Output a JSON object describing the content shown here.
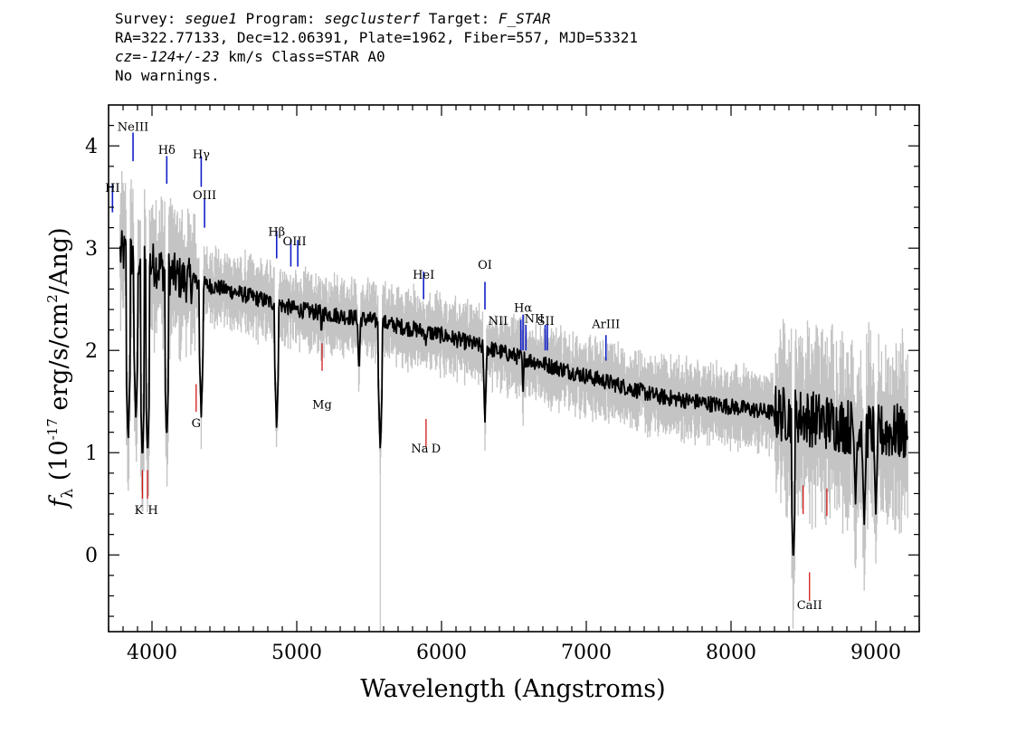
{
  "header": {
    "line1": {
      "survey_label": "Survey: ",
      "survey": "segue1",
      "program_label": " Program: ",
      "program": "segclusterf",
      "target_label": " Target: ",
      "target": "F_STAR"
    },
    "line2": "RA=322.77133, Dec=12.06391, Plate=1962, Fiber=557, MJD=53321",
    "line3": {
      "cz": "cz=-124+/-23",
      "rest": " km/s Class=STAR A0"
    },
    "line4": "No warnings."
  },
  "chart_data": {
    "type": "line",
    "xlabel": "Wavelength (Angstroms)",
    "ylabel_prefix": "f",
    "ylabel_subscript": "λ",
    "ylabel_rest": " (10",
    "ylabel_exp1": "-17",
    "ylabel_mid": " erg/s/cm",
    "ylabel_exp2": "2",
    "ylabel_end": "/Ang)",
    "xlim": [
      3700,
      9300
    ],
    "ylim": [
      -0.75,
      4.4
    ],
    "xticks": [
      4000,
      5000,
      6000,
      7000,
      8000,
      9000
    ],
    "yticks": [
      0,
      1,
      2,
      3,
      4
    ],
    "colors": {
      "flux": "#000000",
      "error_band": "#c4c4c4",
      "emission_lines": "#1020c8",
      "absorption_lines": "#d01818"
    },
    "continuum": [
      [
        3800,
        2.95
      ],
      [
        4000,
        2.85
      ],
      [
        4200,
        2.7
      ],
      [
        4500,
        2.6
      ],
      [
        5000,
        2.4
      ],
      [
        5500,
        2.3
      ],
      [
        6000,
        2.15
      ],
      [
        6500,
        1.95
      ],
      [
        7000,
        1.75
      ],
      [
        7500,
        1.55
      ],
      [
        8000,
        1.45
      ],
      [
        8500,
        1.35
      ],
      [
        9000,
        1.2
      ],
      [
        9200,
        1.2
      ]
    ],
    "absorption_features": [
      [
        3835,
        1.1
      ],
      [
        3889,
        1.3
      ],
      [
        3934,
        0.9
      ],
      [
        3970,
        0.95
      ],
      [
        4102,
        1.1
      ],
      [
        4340,
        1.35
      ],
      [
        4861,
        1.2
      ],
      [
        5170,
        2.1
      ],
      [
        5430,
        1.75
      ],
      [
        5577,
        1.0
      ],
      [
        5893,
        2.0
      ],
      [
        6300,
        1.3
      ],
      [
        6563,
        1.55
      ],
      [
        8430,
        -0.1
      ],
      [
        8860,
        0.5
      ],
      [
        8920,
        0.3
      ],
      [
        9000,
        0.4
      ]
    ],
    "emission_lines": [
      {
        "label": "HI",
        "x": 3727,
        "y": 3.55
      },
      {
        "label": "NeIII",
        "x": 3869,
        "y": 4.15
      },
      {
        "label": "Hδ",
        "x": 4102,
        "y": 3.92
      },
      {
        "label": "Hγ",
        "x": 4340,
        "y": 3.88
      },
      {
        "label": "OIII",
        "x": 4363,
        "y": 3.48
      },
      {
        "label": "Hβ",
        "x": 4861,
        "y": 3.12
      },
      {
        "label": "OIII",
        "x": 4985,
        "y": 3.03
      },
      {
        "label": "HeI",
        "x": 5876,
        "y": 2.7
      },
      {
        "label": "OI",
        "x": 6300,
        "y": 2.8
      },
      {
        "label": "NII",
        "x": 6390,
        "y": 2.25
      },
      {
        "label": "Hα",
        "x": 6563,
        "y": 2.38
      },
      {
        "label": "NII",
        "x": 6640,
        "y": 2.27
      },
      {
        "label": "SII",
        "x": 6720,
        "y": 2.25
      },
      {
        "label": "ArIII",
        "x": 7136,
        "y": 2.22
      }
    ],
    "emission_ticks": [
      {
        "x": 3727,
        "y0": 3.35,
        "y1": 3.63
      },
      {
        "x": 3869,
        "y0": 3.85,
        "y1": 4.13
      },
      {
        "x": 4102,
        "y0": 3.63,
        "y1": 3.9
      },
      {
        "x": 4340,
        "y0": 3.6,
        "y1": 3.9
      },
      {
        "x": 4363,
        "y0": 3.2,
        "y1": 3.48
      },
      {
        "x": 4861,
        "y0": 2.9,
        "y1": 3.17
      },
      {
        "x": 4959,
        "y0": 2.82,
        "y1": 3.08
      },
      {
        "x": 5007,
        "y0": 2.82,
        "y1": 3.08
      },
      {
        "x": 5876,
        "y0": 2.5,
        "y1": 2.77
      },
      {
        "x": 6300,
        "y0": 2.4,
        "y1": 2.67
      },
      {
        "x": 6548,
        "y0": 2.0,
        "y1": 2.3
      },
      {
        "x": 6563,
        "y0": 2.0,
        "y1": 2.35
      },
      {
        "x": 6583,
        "y0": 2.0,
        "y1": 2.25
      },
      {
        "x": 6716,
        "y0": 2.0,
        "y1": 2.25
      },
      {
        "x": 6731,
        "y0": 2.0,
        "y1": 2.25
      },
      {
        "x": 7136,
        "y0": 1.9,
        "y1": 2.15
      }
    ],
    "absorption_lines": [
      {
        "label": "K",
        "x": 3934
      },
      {
        "label": "H",
        "x": 3969
      },
      {
        "label": "G",
        "x": 4305
      },
      {
        "label": "Mg",
        "x": 5175
      },
      {
        "label": "Na",
        "x": 5875
      },
      {
        "label": "D",
        "x": 5900
      },
      {
        "label": "CaII",
        "x": 8542
      }
    ],
    "absorption_ticks": [
      {
        "x": 3934,
        "y0": 0.55,
        "y1": 0.83
      },
      {
        "x": 3969,
        "y0": 0.55,
        "y1": 0.83
      },
      {
        "x": 4305,
        "y0": 1.4,
        "y1": 1.67
      },
      {
        "x": 5175,
        "y0": 1.8,
        "y1": 2.07
      },
      {
        "x": 5893,
        "y0": 1.05,
        "y1": 1.33
      },
      {
        "x": 8498,
        "y0": 0.4,
        "y1": 0.68
      },
      {
        "x": 8542,
        "y0": -0.45,
        "y1": -0.17
      },
      {
        "x": 8662,
        "y0": 0.38,
        "y1": 0.65
      }
    ]
  }
}
